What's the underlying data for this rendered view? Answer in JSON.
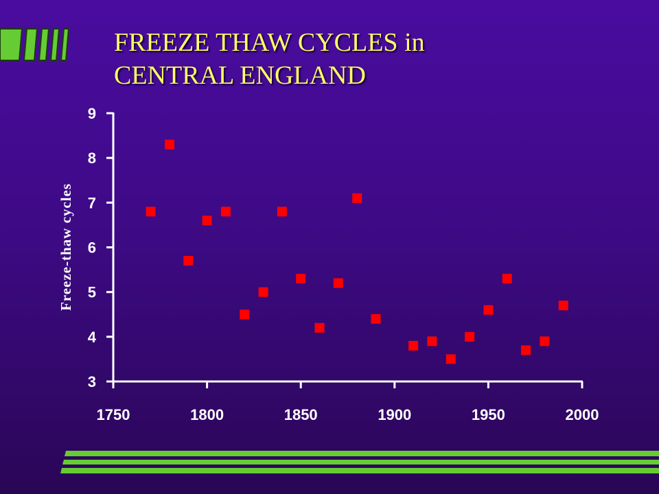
{
  "title": {
    "line1": "FREEZE THAW CYCLES in",
    "line2": "CENTRAL ENGLAND"
  },
  "colors": {
    "title": "#ffff66",
    "marker": "#ff0000",
    "axis": "#ffffff",
    "accent_green": "#66cc33"
  },
  "chart_data": {
    "type": "scatter",
    "title": "FREEZE THAW CYCLES in CENTRAL ENGLAND",
    "xlabel": "",
    "ylabel": "Freeze-thaw cycles",
    "xlim": [
      1750,
      2000
    ],
    "ylim": [
      3,
      9
    ],
    "xticks": [
      1750,
      1800,
      1850,
      1900,
      1950,
      2000
    ],
    "yticks": [
      3,
      4,
      5,
      6,
      7,
      8,
      9
    ],
    "grid": false,
    "legend": "none",
    "series": [
      {
        "marker": "square",
        "x": [
          1770,
          1780,
          1790,
          1800,
          1810,
          1820,
          1830,
          1840,
          1850,
          1860,
          1870,
          1880,
          1890,
          1910,
          1920,
          1930,
          1940,
          1950,
          1960,
          1970,
          1980,
          1990
        ],
        "y": [
          6.8,
          8.3,
          5.7,
          6.6,
          6.8,
          4.5,
          5.0,
          6.8,
          5.3,
          4.2,
          5.2,
          7.1,
          4.4,
          3.8,
          3.9,
          3.5,
          4.0,
          4.6,
          5.3,
          3.7,
          3.9,
          4.7
        ]
      }
    ]
  }
}
